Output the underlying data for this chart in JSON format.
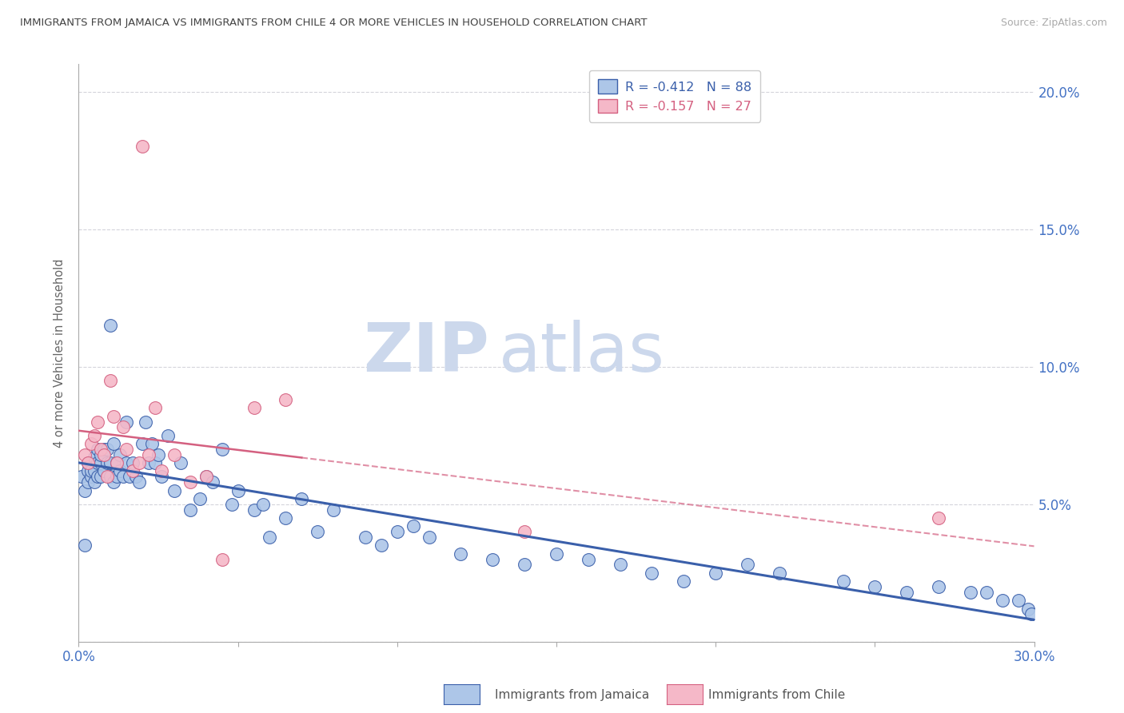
{
  "title": "IMMIGRANTS FROM JAMAICA VS IMMIGRANTS FROM CHILE 4 OR MORE VEHICLES IN HOUSEHOLD CORRELATION CHART",
  "source": "Source: ZipAtlas.com",
  "ylabel_left": "4 or more Vehicles in Household",
  "xlim": [
    0.0,
    0.3
  ],
  "ylim": [
    0.0,
    0.21
  ],
  "xticks": [
    0.0,
    0.05,
    0.1,
    0.15,
    0.2,
    0.25,
    0.3
  ],
  "xtick_labels": [
    "0.0%",
    "",
    "",
    "",
    "",
    "",
    "30.0%"
  ],
  "yticks_right": [
    0.05,
    0.1,
    0.15,
    0.2
  ],
  "ytick_right_labels": [
    "5.0%",
    "10.0%",
    "15.0%",
    "20.0%"
  ],
  "legend_jamaica": "Immigrants from Jamaica",
  "legend_chile": "Immigrants from Chile",
  "jamaica_R": "-0.412",
  "jamaica_N": "88",
  "chile_R": "-0.157",
  "chile_N": "27",
  "jamaica_color": "#adc6e8",
  "chile_color": "#f5b8c8",
  "jamaica_line_color": "#3a5faa",
  "chile_line_color": "#d46080",
  "grid_color": "#d0d0d8",
  "axis_label_color": "#4472c4",
  "watermark_zip_color": "#ccd8ec",
  "watermark_atlas_color": "#ccd8ec",
  "background_color": "#ffffff",
  "jamaica_x": [
    0.001,
    0.002,
    0.002,
    0.003,
    0.003,
    0.003,
    0.004,
    0.004,
    0.004,
    0.005,
    0.005,
    0.005,
    0.006,
    0.006,
    0.006,
    0.007,
    0.007,
    0.007,
    0.008,
    0.008,
    0.009,
    0.009,
    0.01,
    0.01,
    0.01,
    0.011,
    0.011,
    0.012,
    0.012,
    0.013,
    0.013,
    0.014,
    0.015,
    0.015,
    0.016,
    0.017,
    0.018,
    0.019,
    0.02,
    0.021,
    0.022,
    0.023,
    0.024,
    0.025,
    0.026,
    0.028,
    0.03,
    0.032,
    0.035,
    0.038,
    0.04,
    0.042,
    0.045,
    0.048,
    0.05,
    0.055,
    0.058,
    0.06,
    0.065,
    0.07,
    0.075,
    0.08,
    0.09,
    0.095,
    0.1,
    0.105,
    0.11,
    0.12,
    0.13,
    0.14,
    0.15,
    0.16,
    0.17,
    0.18,
    0.19,
    0.2,
    0.21,
    0.22,
    0.24,
    0.25,
    0.26,
    0.27,
    0.28,
    0.285,
    0.29,
    0.295,
    0.298,
    0.299
  ],
  "jamaica_y": [
    0.06,
    0.035,
    0.055,
    0.062,
    0.058,
    0.065,
    0.06,
    0.065,
    0.062,
    0.058,
    0.062,
    0.067,
    0.06,
    0.065,
    0.07,
    0.06,
    0.065,
    0.068,
    0.062,
    0.07,
    0.065,
    0.07,
    0.06,
    0.065,
    0.115,
    0.058,
    0.072,
    0.06,
    0.065,
    0.062,
    0.068,
    0.06,
    0.065,
    0.08,
    0.06,
    0.065,
    0.06,
    0.058,
    0.072,
    0.08,
    0.065,
    0.072,
    0.065,
    0.068,
    0.06,
    0.075,
    0.055,
    0.065,
    0.048,
    0.052,
    0.06,
    0.058,
    0.07,
    0.05,
    0.055,
    0.048,
    0.05,
    0.038,
    0.045,
    0.052,
    0.04,
    0.048,
    0.038,
    0.035,
    0.04,
    0.042,
    0.038,
    0.032,
    0.03,
    0.028,
    0.032,
    0.03,
    0.028,
    0.025,
    0.022,
    0.025,
    0.028,
    0.025,
    0.022,
    0.02,
    0.018,
    0.02,
    0.018,
    0.018,
    0.015,
    0.015,
    0.012,
    0.01
  ],
  "chile_x": [
    0.002,
    0.003,
    0.004,
    0.005,
    0.006,
    0.007,
    0.008,
    0.009,
    0.01,
    0.011,
    0.012,
    0.014,
    0.015,
    0.017,
    0.019,
    0.02,
    0.022,
    0.024,
    0.026,
    0.03,
    0.035,
    0.04,
    0.045,
    0.055,
    0.065,
    0.14,
    0.27
  ],
  "chile_y": [
    0.068,
    0.065,
    0.072,
    0.075,
    0.08,
    0.07,
    0.068,
    0.06,
    0.095,
    0.082,
    0.065,
    0.078,
    0.07,
    0.062,
    0.065,
    0.18,
    0.068,
    0.085,
    0.062,
    0.068,
    0.058,
    0.06,
    0.03,
    0.085,
    0.088,
    0.04,
    0.045
  ]
}
